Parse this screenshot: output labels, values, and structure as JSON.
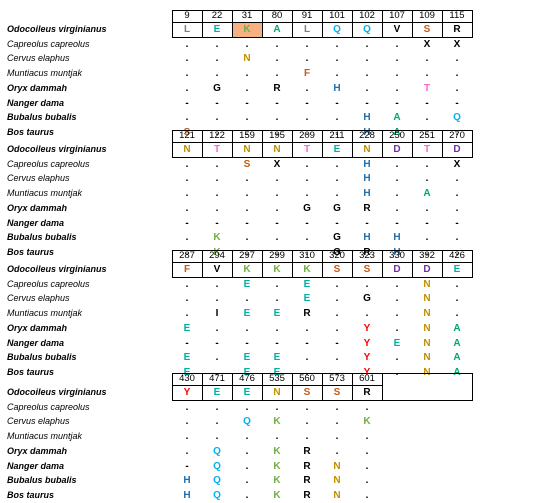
{
  "species": [
    {
      "name": "Odocoileus virginianus",
      "style": "bi"
    },
    {
      "name": "Capreolus capreolus",
      "style": "it"
    },
    {
      "name": "Cervus elaphus",
      "style": "it"
    },
    {
      "name": "Muntiacus muntjak",
      "style": "it"
    },
    {
      "name": "Oryx dammah",
      "style": "bi"
    },
    {
      "name": "Nanger dama",
      "style": "bi"
    },
    {
      "name": "Bubalus bubalis",
      "style": "bi"
    },
    {
      "name": "Bos taurus",
      "style": "bi"
    }
  ],
  "colors": {
    "K": "#70ad47",
    "E": "#00b0a0",
    "Q": "#00b0f0",
    "S": "#c55a11",
    "N": "#bf9000",
    "T": "#ff66cc",
    "D": "#7030a0",
    "H": "#1f6fae",
    "A": "#00a86b",
    "G": "#000000",
    "Y": "#ff0000",
    "F": "#c55a11",
    "L": "#7f7f7f",
    "V": "#000000",
    "R": "#000000",
    "X": "#000000",
    "I": "#000000",
    ".": "#000000",
    "-": "#000000"
  },
  "highlight_color": "#f5b183",
  "blocks": [
    {
      "positions": [
        "9",
        "22",
        "31",
        "80",
        "91",
        "101",
        "102",
        "107",
        "109",
        "115"
      ],
      "highlight_col": 2,
      "rows": [
        [
          "L",
          "E",
          "K",
          "A",
          "L",
          "Q",
          "Q",
          "V",
          "S",
          "R"
        ],
        [
          ".",
          ".",
          ".",
          ".",
          ".",
          ".",
          ".",
          ".",
          "X",
          "X"
        ],
        [
          ".",
          ".",
          "N",
          ".",
          ".",
          ".",
          ".",
          ".",
          ".",
          "."
        ],
        [
          ".",
          ".",
          ".",
          ".",
          "F",
          ".",
          ".",
          ".",
          ".",
          "."
        ],
        [
          ".",
          "G",
          ".",
          "R",
          ".",
          "H",
          ".",
          ".",
          "T",
          "."
        ],
        [
          "-",
          "-",
          "-",
          "-",
          "-",
          "-",
          "-",
          "-",
          "-",
          "-"
        ],
        [
          ".",
          ".",
          ".",
          ".",
          ".",
          ".",
          "H",
          "A",
          ".",
          "Q"
        ],
        [
          "S",
          ".",
          ".",
          ".",
          ".",
          ".",
          "H",
          "A",
          ".",
          "."
        ]
      ]
    },
    {
      "positions": [
        "121",
        "122",
        "159",
        "195",
        "209",
        "211",
        "228",
        "250",
        "251",
        "270"
      ],
      "highlight_col": -1,
      "rows": [
        [
          "N",
          "T",
          "N",
          "N",
          "T",
          "E",
          "N",
          "D",
          "T",
          "D"
        ],
        [
          ".",
          ".",
          "S",
          "X",
          ".",
          ".",
          "H",
          ".",
          ".",
          "X"
        ],
        [
          ".",
          ".",
          ".",
          ".",
          ".",
          ".",
          "H",
          ".",
          ".",
          "."
        ],
        [
          ".",
          ".",
          ".",
          ".",
          ".",
          ".",
          "H",
          ".",
          "A",
          "."
        ],
        [
          ".",
          ".",
          ".",
          ".",
          "G",
          "G",
          "R",
          ".",
          ".",
          "."
        ],
        [
          "-",
          "-",
          "-",
          "-",
          "-",
          "-",
          "-",
          "-",
          "-",
          "-"
        ],
        [
          ".",
          "K",
          ".",
          ".",
          ".",
          "G",
          "H",
          "H",
          ".",
          "."
        ],
        [
          ".",
          "K",
          ".",
          ".",
          ".",
          "G",
          "R",
          "H",
          ".",
          "."
        ]
      ]
    },
    {
      "positions": [
        "287",
        "294",
        "297",
        "299",
        "310",
        "320",
        "323",
        "330",
        "392",
        "426"
      ],
      "highlight_col": -1,
      "rows": [
        [
          "F",
          "V",
          "K",
          "K",
          "K",
          "S",
          "S",
          "D",
          "D",
          "E"
        ],
        [
          ".",
          ".",
          "E",
          ".",
          "E",
          ".",
          ".",
          ".",
          "N",
          "."
        ],
        [
          ".",
          ".",
          ".",
          ".",
          "E",
          ".",
          "G",
          ".",
          "N",
          "."
        ],
        [
          ".",
          "I",
          "E",
          "E",
          "R",
          ".",
          ".",
          ".",
          "N",
          "."
        ],
        [
          "E",
          ".",
          ".",
          ".",
          ".",
          ".",
          "Y",
          ".",
          "N",
          "A"
        ],
        [
          "-",
          "-",
          "-",
          "-",
          "-",
          "-",
          "Y",
          "E",
          "N",
          "A"
        ],
        [
          "E",
          ".",
          "E",
          "E",
          ".",
          ".",
          "Y",
          ".",
          "N",
          "A"
        ],
        [
          "E",
          ".",
          "E",
          "E",
          ".",
          ".",
          "Y",
          ".",
          "N",
          "A"
        ]
      ]
    },
    {
      "positions": [
        "430",
        "471",
        "476",
        "535",
        "560",
        "573",
        "601"
      ],
      "highlight_col": -1,
      "rows": [
        [
          "Y",
          "E",
          "E",
          "N",
          "S",
          "S",
          "R"
        ],
        [
          ".",
          ".",
          ".",
          ".",
          ".",
          ".",
          "."
        ],
        [
          ".",
          ".",
          "Q",
          "K",
          ".",
          ".",
          "K"
        ],
        [
          ".",
          ".",
          ".",
          ".",
          ".",
          ".",
          "."
        ],
        [
          ".",
          "Q",
          ".",
          "K",
          "R",
          ".",
          "."
        ],
        [
          "-",
          "Q",
          ".",
          "K",
          "R",
          "N",
          "."
        ],
        [
          "H",
          "Q",
          ".",
          "K",
          "R",
          "N",
          "."
        ],
        [
          "H",
          "Q",
          ".",
          "K",
          "R",
          "N",
          "."
        ]
      ]
    }
  ]
}
